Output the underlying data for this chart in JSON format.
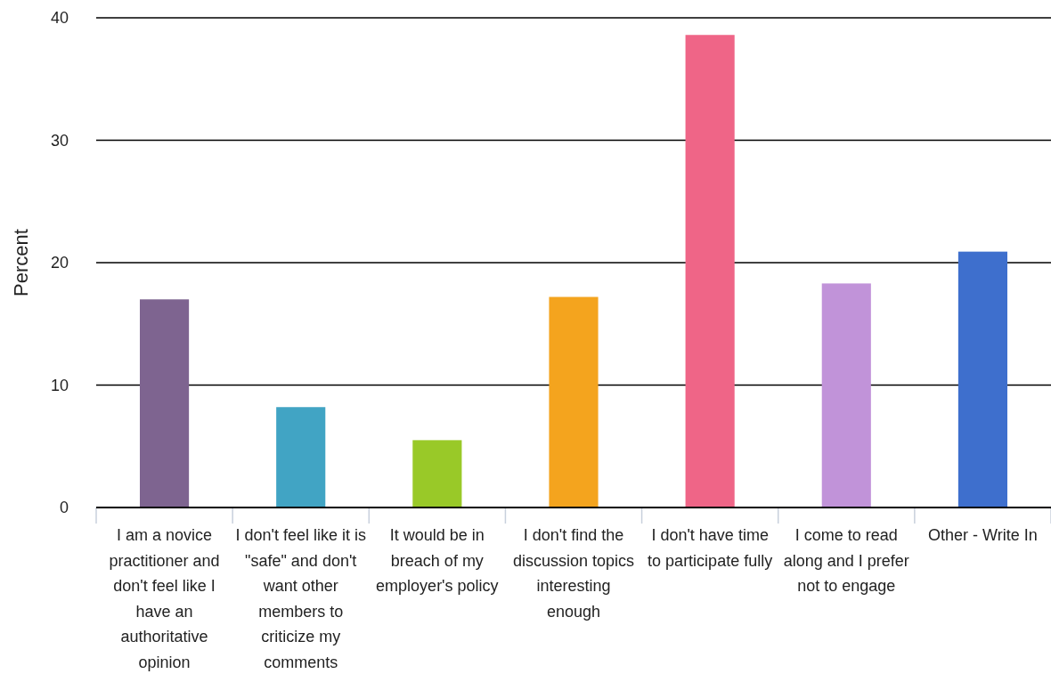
{
  "chart_data": {
    "type": "bar",
    "ylabel": "Percent",
    "categories": [
      "I am a novice practitioner and don't feel like I have an authoritative opinion",
      "I don't feel like it is \"safe\" and don't want other members to criticize my comments",
      "It would be in breach of my employer's policy",
      "I don't find the discussion topics interesting enough",
      "I don't have time to participate fully",
      "I come to read along and I prefer not to engage",
      "Other - Write In"
    ],
    "values": [
      17.0,
      8.2,
      5.5,
      17.2,
      38.6,
      18.3,
      20.9
    ],
    "colors": [
      "#7e6490",
      "#41a4c4",
      "#99c928",
      "#f4a41e",
      "#ef6587",
      "#c193d9",
      "#3e6fcd"
    ],
    "ylim": [
      0,
      40
    ],
    "yticks": [
      0,
      10,
      20,
      30,
      40
    ],
    "grid": "y"
  }
}
